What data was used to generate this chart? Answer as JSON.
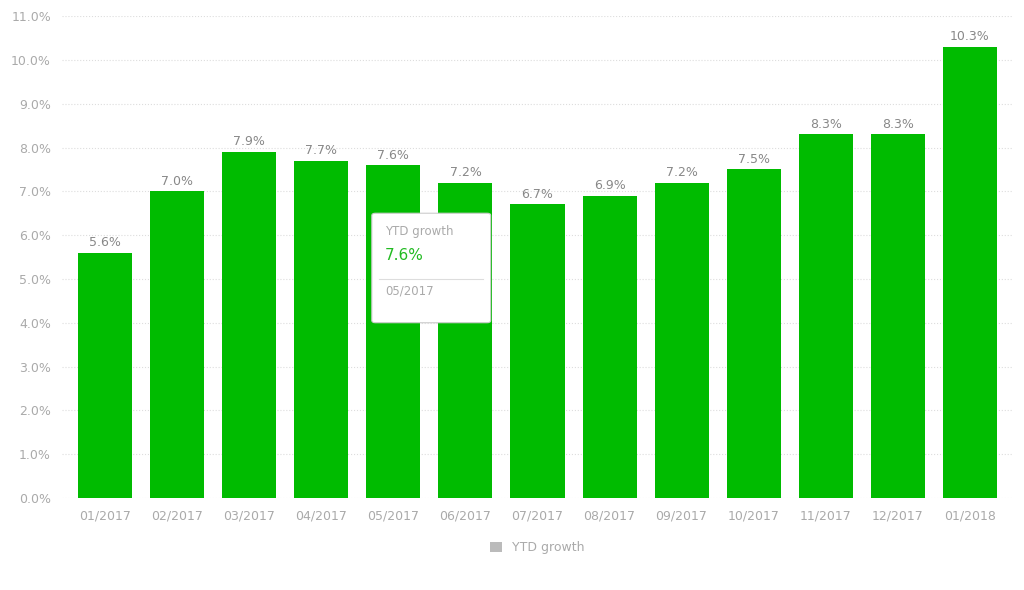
{
  "categories": [
    "01/2017",
    "02/2017",
    "03/2017",
    "04/2017",
    "05/2017",
    "06/2017",
    "07/2017",
    "08/2017",
    "09/2017",
    "10/2017",
    "11/2017",
    "12/2017",
    "01/2018"
  ],
  "values": [
    5.6,
    7.0,
    7.9,
    7.7,
    7.6,
    7.2,
    6.7,
    6.9,
    7.2,
    7.5,
    8.3,
    8.3,
    10.3
  ],
  "bar_color": "#00bb00",
  "ylim": [
    0.0,
    11.0
  ],
  "yticks": [
    0.0,
    1.0,
    2.0,
    3.0,
    4.0,
    5.0,
    6.0,
    7.0,
    8.0,
    9.0,
    10.0,
    11.0
  ],
  "ytick_labels": [
    "0.0%",
    "1.0%",
    "2.0%",
    "3.0%",
    "4.0%",
    "5.0%",
    "6.0%",
    "7.0%",
    "8.0%",
    "9.0%",
    "10.0%",
    "11.0%"
  ],
  "grid_color": "#dddddd",
  "background_color": "#ffffff",
  "label_color": "#aaaaaa",
  "label_fontsize": 9,
  "bar_label_fontsize": 9,
  "bar_label_color": "#888888",
  "legend_label": "YTD growth",
  "legend_color": "#bbbbbb",
  "tooltip_label": "YTD growth",
  "tooltip_value": "7.6%",
  "tooltip_date": "05/2017",
  "tooltip_index": 4
}
